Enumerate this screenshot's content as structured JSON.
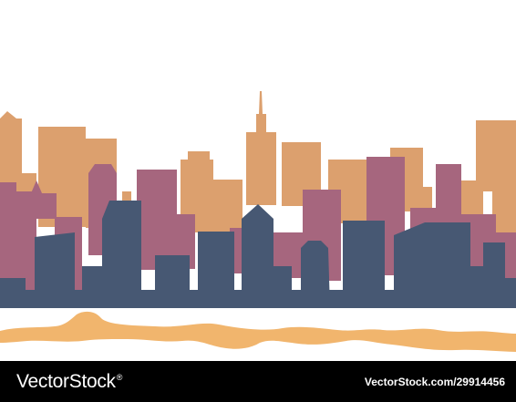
{
  "colors": {
    "background": "#ffffff",
    "back_layer": "#dca06e",
    "middle_layer": "#a6667e",
    "front_layer": "#475873",
    "river": "#f1b56d",
    "footer_bg": "#000000"
  },
  "footer": {
    "brand": "VectorStock",
    "brand_mark": "®",
    "credit": "VectorStock.com/29914456"
  }
}
